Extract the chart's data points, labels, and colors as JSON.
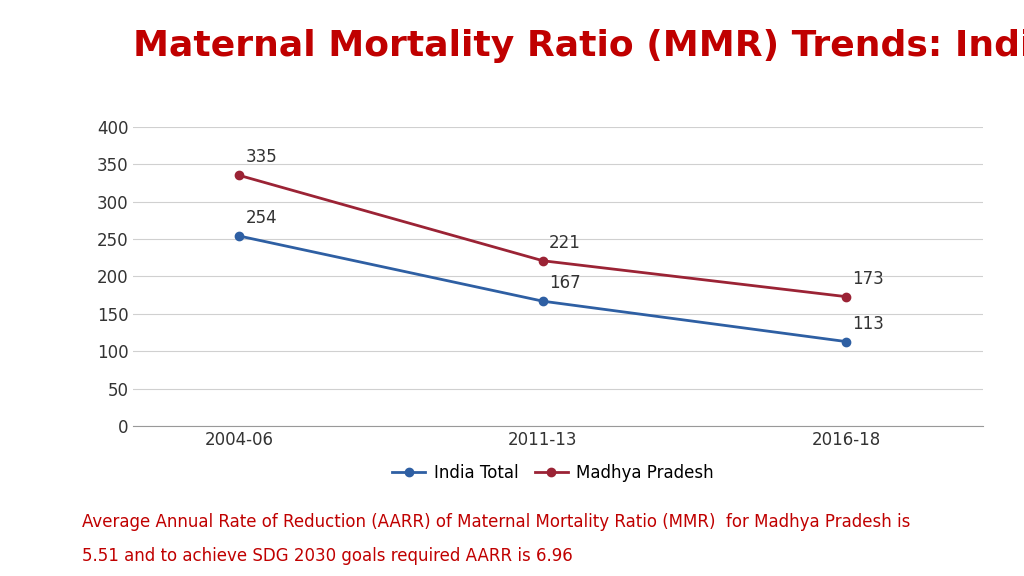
{
  "title": "Maternal Mortality Ratio (MMR) Trends: India & M.P.",
  "title_color": "#c00000",
  "title_fontsize": 26,
  "title_fontweight": "bold",
  "x_labels": [
    "2004-06",
    "2011-13",
    "2016-18"
  ],
  "x_positions": [
    0,
    1,
    2
  ],
  "india_values": [
    254,
    167,
    113
  ],
  "mp_values": [
    335,
    221,
    173
  ],
  "india_color": "#2e5fa3",
  "mp_color": "#9b2335",
  "line_width": 2.0,
  "marker": "o",
  "markersize": 6,
  "ylim": [
    0,
    400
  ],
  "yticks": [
    0,
    50,
    100,
    150,
    200,
    250,
    300,
    350,
    400
  ],
  "legend_india": "India Total",
  "legend_mp": "Madhya Pradesh",
  "footnote_line1": "Average Annual Rate of Reduction (AARR) of Maternal Mortality Ratio (MMR)  for Madhya Pradesh is",
  "footnote_line2": "5.51 and to achieve SDG 2030 goals required AARR is 6.96",
  "footnote_color": "#c00000",
  "footnote_fontsize": 12,
  "grid_color": "#d0d0d0",
  "background_color": "#ffffff",
  "label_fontsize": 12,
  "tick_fontsize": 12,
  "legend_fontsize": 12
}
